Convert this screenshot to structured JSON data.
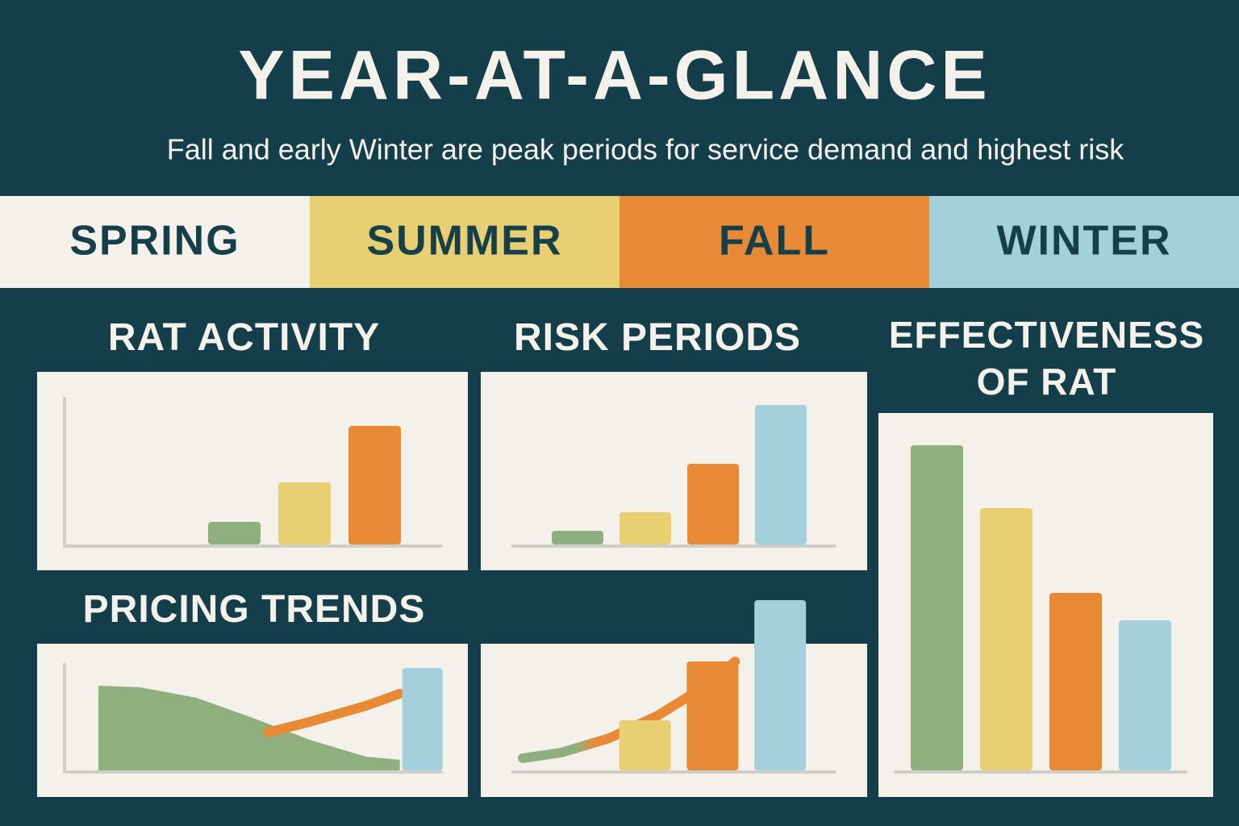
{
  "title": "YEAR-AT-A-GLANCE",
  "subtitle": "Fall and early Winter are peak periods for service demand and highest risk",
  "seasons": [
    {
      "name": "SPRING",
      "color": "#f3f1e9"
    },
    {
      "name": "SUMMER",
      "color": "#e8cf72"
    },
    {
      "name": "FALL",
      "color": "#e88a35"
    },
    {
      "name": "WINTER",
      "color": "#a3d0da"
    }
  ],
  "chart_data": [
    {
      "type": "bar",
      "title": "RAT ACTIVITY",
      "values": [
        28,
        77,
        147
      ],
      "colors": [
        "#8fb07e",
        "#e8cf72",
        "#e88a35"
      ],
      "ylim": [
        0,
        180
      ]
    },
    {
      "type": "bar",
      "title": "RISK PERIODS",
      "values": [
        17,
        40,
        100,
        173
      ],
      "colors": [
        "#8fb07e",
        "#e8cf72",
        "#e88a35",
        "#a3d0da"
      ],
      "ylim": [
        0,
        180
      ]
    },
    {
      "type": "bar",
      "title": "EFFECTIVENESS OF RAT CONTROL",
      "values": [
        403,
        325,
        220,
        186
      ],
      "colors": [
        "#8fb07e",
        "#e8cf72",
        "#e88a35",
        "#a3d0da"
      ],
      "ylim": [
        0,
        420
      ]
    },
    {
      "type": "combo",
      "title": "PRICING TRENDS",
      "xlim": [
        0,
        100
      ],
      "ylim": [
        0,
        130
      ],
      "series": [
        {
          "type": "area",
          "color": "#8fb07e",
          "x": [
            9,
            20,
            35,
            50,
            65,
            80,
            89
          ],
          "values": [
            105,
            103,
            90,
            65,
            38,
            17,
            13
          ]
        },
        {
          "type": "line",
          "color": "#e88a35",
          "x": [
            54,
            65,
            80,
            89
          ],
          "values": [
            47,
            60,
            80,
            95
          ]
        },
        {
          "type": "bar",
          "color": "#a3d0da",
          "x": [
            95
          ],
          "values": [
            127
          ]
        }
      ]
    },
    {
      "type": "combo",
      "xlim": [
        0,
        100
      ],
      "ylim": [
        0,
        215
      ],
      "series": [
        {
          "type": "line",
          "colors": [
            "#8fb07e",
            "#e88a35"
          ],
          "x": [
            3,
            15,
            30,
            45,
            60,
            69
          ],
          "values": [
            15,
            22,
            40,
            68,
            105,
            135
          ]
        },
        {
          "type": "bar",
          "color": "#e8cf72",
          "x": [
            41
          ],
          "values": [
            62
          ]
        },
        {
          "type": "bar",
          "color": "#e88a35",
          "x": [
            62
          ],
          "values": [
            135
          ]
        },
        {
          "type": "bar",
          "color": "#a3d0da",
          "x": [
            83
          ],
          "values": [
            211
          ]
        }
      ]
    }
  ]
}
